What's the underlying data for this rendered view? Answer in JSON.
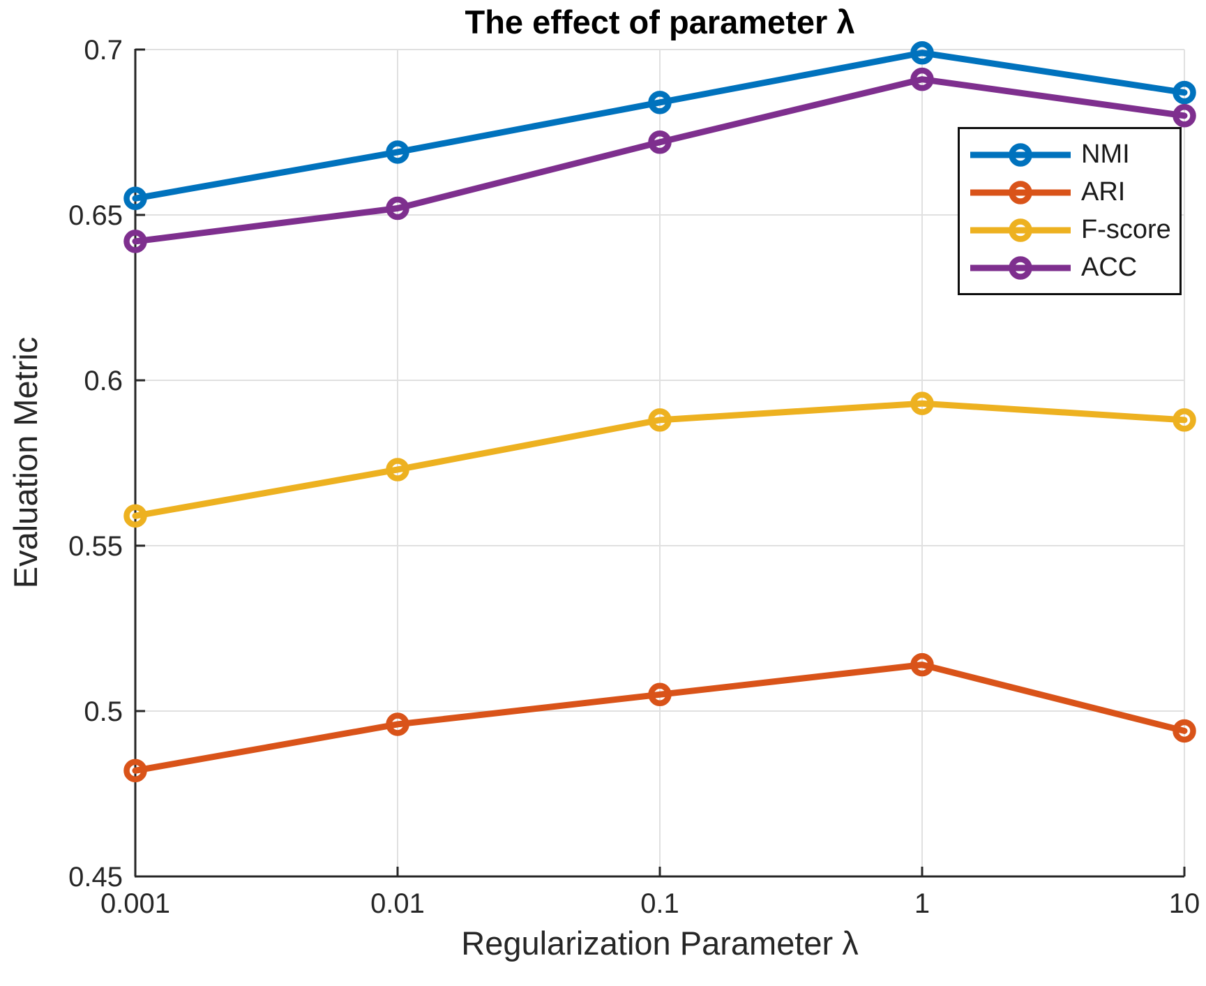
{
  "figure": {
    "title": "The effect of parameter λ",
    "xlabel": "Regularization Parameter λ",
    "ylabel": "Evaluation Metric"
  },
  "chart_data": {
    "type": "line",
    "title": "The effect of parameter λ",
    "xlabel": "Regularization Parameter λ",
    "ylabel": "Evaluation Metric",
    "x_scale": "log",
    "x": [
      0.001,
      0.01,
      0.1,
      1,
      10
    ],
    "x_tick_labels": [
      "0.001",
      "0.01",
      "0.1",
      "1",
      "10"
    ],
    "y_ticks": [
      0.45,
      0.5,
      0.55,
      0.6,
      0.65,
      0.7
    ],
    "y_tick_labels": [
      "0.45",
      "0.5",
      "0.55",
      "0.6",
      "0.65",
      "0.7"
    ],
    "ylim": [
      0.45,
      0.7
    ],
    "grid": true,
    "legend_position": "upper-right-inside",
    "marker": "o",
    "series": [
      {
        "name": "NMI",
        "color": "#0072BD",
        "values": [
          0.655,
          0.669,
          0.684,
          0.699,
          0.687
        ]
      },
      {
        "name": "ARI",
        "color": "#D95319",
        "values": [
          0.482,
          0.496,
          0.505,
          0.514,
          0.494
        ]
      },
      {
        "name": "F-score",
        "color": "#EDB120",
        "values": [
          0.559,
          0.573,
          0.588,
          0.593,
          0.588
        ]
      },
      {
        "name": "ACC",
        "color": "#7E2F8E",
        "values": [
          0.642,
          0.652,
          0.672,
          0.691,
          0.68
        ]
      }
    ]
  },
  "colors": {
    "background": "#FFFFFF",
    "axis": "#262626",
    "grid": "#E0E0E0",
    "text": "#262626",
    "legend_border": "#0D0D0D"
  }
}
